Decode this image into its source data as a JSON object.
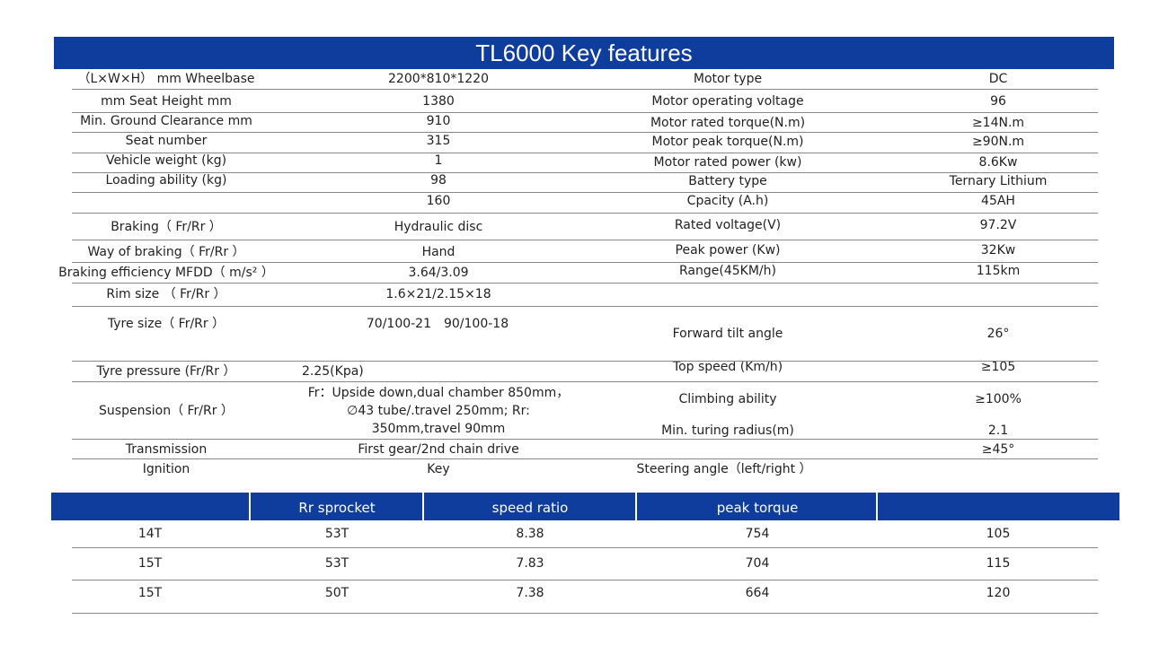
{
  "title": "TL6000 Key features",
  "spec": {
    "rows": [
      [
        "（L×W×H） mm Wheelbase",
        "2200*810*1220",
        "Motor type",
        "DC"
      ],
      [
        "mm Seat Height mm",
        "1380",
        "Motor operating voltage",
        "96"
      ],
      [
        "Min. Ground Clearance mm",
        "910",
        "Motor rated torque(N.m)",
        "≥14N.m"
      ],
      [
        "Seat number",
        "315",
        "Motor peak torque(N.m)",
        "≥90N.m"
      ],
      [
        "Vehicle weight (kg)",
        "1",
        "Motor rated power (kw)",
        "8.6Kw"
      ],
      [
        "Loading ability (kg)",
        "98",
        "Battery type",
        "Ternary Lithium"
      ],
      [
        null,
        "160",
        "Cpacity (A.h)",
        "45AH"
      ],
      [
        "Braking（ Fr/Rr ）",
        "Hydraulic disc",
        "Rated voltage(V)",
        "97.2V"
      ],
      [
        "Way of braking（ Fr/Rr ）",
        "Hand",
        "Peak power (Kw)",
        "32Kw"
      ],
      [
        "Braking efficiency MFDD（ m/s² ）",
        "3.64/3.09",
        "Range(45KM/h)",
        "115km"
      ],
      [
        "Rim size （ Fr/Rr ）",
        "1.6×21/2.15×18",
        null,
        null
      ],
      [
        "Tyre size（ Fr/Rr ）",
        "70/100-21　90/100-18",
        "Forward tilt angle",
        "26°"
      ],
      [
        "Tyre pressure (Fr/Rr ）",
        "2.25(Kpa)",
        "Top speed (Km/h)",
        "≥105"
      ],
      [
        "Suspension（ Fr/Rr ）",
        "Fr：Upside down,dual chamber 850mm，∅43 tube/.travel 250mm; Rr: 350mm,travel 90mm",
        "Climbing ability",
        "≥100%"
      ],
      [
        null,
        null,
        "Min. turing radius(m)",
        "2.1"
      ],
      [
        "Transmission",
        "First gear/2nd chain drive",
        null,
        "≥45°"
      ],
      [
        "Ignition",
        "Key",
        "Steering angle（left/right ）",
        null
      ]
    ]
  },
  "gear_table": {
    "header": [
      null,
      "Rr sprocket",
      "speed ratio",
      "peak torque",
      null
    ],
    "rows": [
      [
        "14T",
        "53T",
        "8.38",
        "754",
        "105"
      ],
      [
        "15T",
        "53T",
        "7.83",
        "704",
        "115"
      ],
      [
        "15T",
        "50T",
        "7.38",
        "664",
        "120"
      ]
    ]
  }
}
